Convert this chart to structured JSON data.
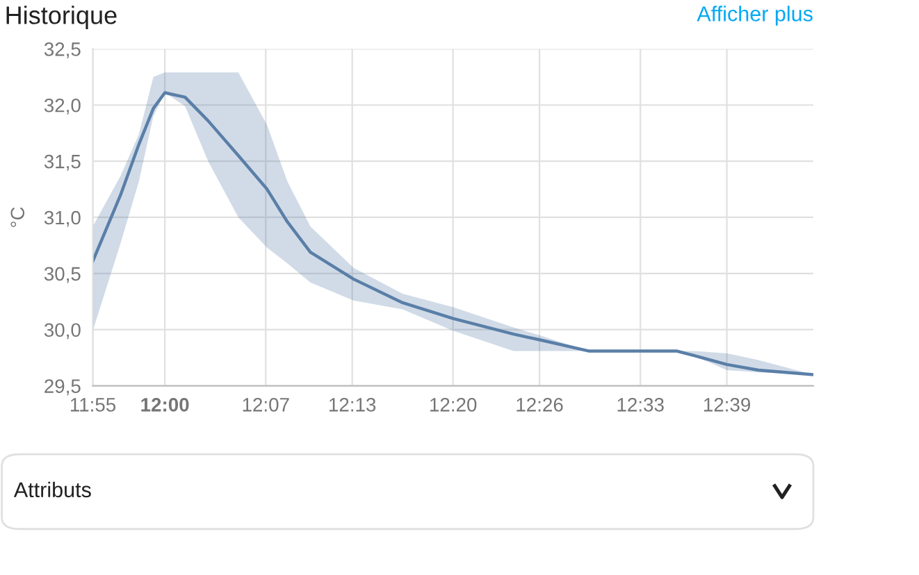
{
  "chart_data": {
    "type": "line",
    "title": "Historique",
    "ylabel": "°C",
    "annotations": [
      "Afficher plus",
      "Attributs"
    ],
    "x": [
      11.9167,
      11.9488,
      11.97,
      11.9867,
      12.0,
      12.0233,
      12.05,
      12.085,
      12.1183,
      12.1417,
      12.1683,
      12.2183,
      12.275,
      12.3333,
      12.4033,
      12.4333,
      12.49,
      12.5917,
      12.6117,
      12.65,
      12.6867,
      12.75
    ],
    "series": [
      {
        "color": "#5a7fa8",
        "values": [
          30.61,
          31.2,
          31.65,
          31.97,
          32.11,
          32.07,
          31.86,
          31.55,
          31.25,
          30.96,
          30.69,
          30.45,
          30.24,
          30.1,
          29.96,
          29.91,
          29.81,
          29.81,
          29.77,
          29.69,
          29.64,
          29.6
        ],
        "upper": [
          30.92,
          31.37,
          31.74,
          32.25,
          32.29,
          32.29,
          32.29,
          32.29,
          31.82,
          31.32,
          30.92,
          30.55,
          30.32,
          30.2,
          30.02,
          29.95,
          29.81,
          29.81,
          29.81,
          29.79,
          29.73,
          29.6
        ],
        "lower": [
          29.99,
          30.77,
          31.32,
          31.9,
          32.11,
          31.99,
          31.5,
          31.0,
          30.73,
          30.59,
          30.42,
          30.26,
          30.18,
          29.99,
          29.81,
          29.81,
          29.81,
          29.81,
          29.77,
          29.64,
          29.62,
          29.6
        ]
      }
    ],
    "xlim": [
      11.9167,
      12.75
    ],
    "xticks": [
      {
        "value": 11.9167,
        "label": "11:55"
      },
      {
        "value": 12.0,
        "label": "12:00"
      },
      {
        "value": 12.1167,
        "label": "12:07"
      },
      {
        "value": 12.2167,
        "label": "12:13"
      },
      {
        "value": 12.3333,
        "label": "12:20"
      },
      {
        "value": 12.4333,
        "label": "12:26"
      },
      {
        "value": 12.55,
        "label": "12:33"
      },
      {
        "value": 12.65,
        "label": "12:39"
      }
    ],
    "ylim": [
      29.5,
      32.5
    ],
    "yticks": [
      {
        "value": 29.5,
        "label": "29,5"
      },
      {
        "value": 30.0,
        "label": "30,0"
      },
      {
        "value": 30.5,
        "label": "30,5"
      },
      {
        "value": 31.0,
        "label": "31,0"
      },
      {
        "value": 31.5,
        "label": "31,5"
      },
      {
        "value": 32.0,
        "label": "32,0"
      },
      {
        "value": 32.5,
        "label": "32,5"
      }
    ],
    "grid": true,
    "legend": false,
    "marker": "none",
    "line_style": "solid"
  }
}
